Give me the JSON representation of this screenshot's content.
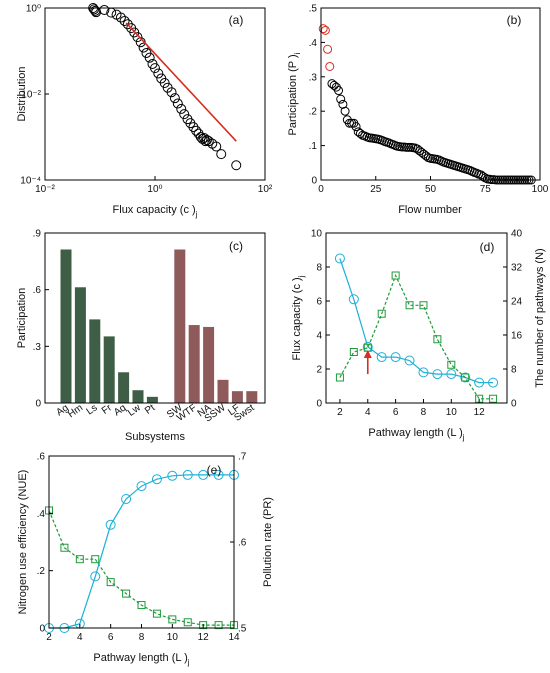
{
  "colors": {
    "black": "#000000",
    "red": "#d62e1f",
    "blue": "#1cb0d8",
    "green": "#1e9a3a",
    "dark_green": "#3f5e46",
    "brown": "#8e5a5a"
  },
  "chart_data": [
    {
      "id": "a",
      "panel_label": "(a)",
      "type": "scatter",
      "xscale": "log",
      "yscale": "log",
      "xlim": [
        0.01,
        100
      ],
      "ylim": [
        0.0001,
        1
      ],
      "xticks": [
        0.01,
        1,
        100
      ],
      "xtick_labels": [
        "10⁻²",
        "10⁰",
        "10²"
      ],
      "yticks": [
        0.0001,
        0.01,
        1
      ],
      "ytick_labels": [
        "10⁻⁴",
        "10⁻²",
        "10⁰"
      ],
      "xlabel": "Flux capacity (c )",
      "xlabel_sub": "j",
      "ylabel": "Distribution",
      "points_x": [
        0.075,
        0.078,
        0.082,
        0.085,
        0.12,
        0.16,
        0.2,
        0.24,
        0.28,
        0.32,
        0.37,
        0.42,
        0.48,
        0.55,
        0.62,
        0.7,
        0.8,
        0.9,
        1.0,
        1.15,
        1.3,
        1.5,
        1.7,
        2.0,
        2.3,
        2.6,
        3.0,
        3.4,
        3.9,
        4.4,
        5.0,
        5.6,
        6.2,
        6.8,
        7.3,
        7.8,
        8.3,
        8.8,
        9.5,
        11,
        13,
        16,
        30
      ],
      "points_y": [
        1.0,
        0.93,
        0.86,
        0.8,
        0.9,
        0.78,
        0.7,
        0.6,
        0.5,
        0.42,
        0.34,
        0.27,
        0.21,
        0.16,
        0.12,
        0.09,
        0.07,
        0.05,
        0.04,
        0.03,
        0.023,
        0.018,
        0.014,
        0.011,
        0.008,
        0.006,
        0.0045,
        0.0034,
        0.0026,
        0.0021,
        0.0017,
        0.0014,
        0.0012,
        0.001,
        0.0009,
        0.00095,
        0.0008,
        0.00085,
        0.0008,
        0.0007,
        0.0006,
        0.0004,
        0.00022
      ],
      "fit_line": {
        "x": [
          0.3,
          30
        ],
        "y": [
          0.45,
          0.0008
        ]
      }
    },
    {
      "id": "b",
      "panel_label": "(b)",
      "type": "scatter",
      "xlim": [
        0,
        100
      ],
      "ylim": [
        0,
        0.5
      ],
      "xticks": [
        0,
        25,
        50,
        75,
        100
      ],
      "yticks": [
        0,
        0.1,
        0.2,
        0.3,
        0.4,
        0.5
      ],
      "xlabel": "Flow number",
      "ylabel": "Participation (P )",
      "ylabel_sub": "i",
      "highlight_count": 4,
      "points_y": [
        0.44,
        0.435,
        0.38,
        0.33,
        0.28,
        0.275,
        0.27,
        0.26,
        0.235,
        0.22,
        0.2,
        0.175,
        0.165,
        0.165,
        0.165,
        0.155,
        0.14,
        0.135,
        0.13,
        0.128,
        0.125,
        0.123,
        0.122,
        0.121,
        0.12,
        0.119,
        0.117,
        0.115,
        0.112,
        0.11,
        0.108,
        0.105,
        0.103,
        0.1,
        0.098,
        0.097,
        0.096,
        0.096,
        0.095,
        0.095,
        0.095,
        0.094,
        0.093,
        0.09,
        0.085,
        0.08,
        0.075,
        0.07,
        0.065,
        0.063,
        0.062,
        0.061,
        0.06,
        0.058,
        0.055,
        0.052,
        0.05,
        0.048,
        0.046,
        0.044,
        0.042,
        0.04,
        0.038,
        0.036,
        0.034,
        0.032,
        0.03,
        0.028,
        0.025,
        0.022,
        0.02,
        0.017,
        0.015,
        0.01,
        0.006,
        0.003,
        0.002,
        0.001,
        0.001,
        0.0,
        0.0,
        0.0,
        0.0,
        0.0,
        0.0,
        0.0,
        0.0,
        0.0,
        0.0,
        0.0,
        0.0,
        0.0,
        0.0,
        0.0,
        0.0,
        0.0
      ]
    },
    {
      "id": "c",
      "panel_label": "(c)",
      "type": "bar",
      "ylim": [
        0,
        0.9
      ],
      "yticks": [
        0,
        0.3,
        0.6,
        0.9
      ],
      "xlabel": "Subsystems",
      "ylabel": "Participation",
      "groups": [
        {
          "categories": [
            "Ag",
            "Hm",
            "Ls",
            "Fr",
            "Aq",
            "Lw",
            "Pt"
          ],
          "values": [
            0.81,
            0.61,
            0.44,
            0.35,
            0.16,
            0.065,
            0.03
          ],
          "color": "#3f5e46"
        },
        {
          "categories": [
            "SW",
            "WTF",
            "NA",
            "SSW",
            "LF",
            "Swst"
          ],
          "values": [
            0.81,
            0.41,
            0.4,
            0.12,
            0.06,
            0.06
          ],
          "color": "#8e5a5a"
        }
      ]
    },
    {
      "id": "d",
      "panel_label": "(d)",
      "type": "line",
      "xlim": [
        1,
        14
      ],
      "xticks": [
        2,
        4,
        6,
        8,
        10,
        12
      ],
      "ylim_left": [
        0,
        10
      ],
      "yticks_left": [
        0,
        2,
        4,
        6,
        8,
        10
      ],
      "ylim_right": [
        0,
        40
      ],
      "yticks_right": [
        0,
        8,
        16,
        24,
        32,
        40
      ],
      "xlabel": "Pathway length (L )",
      "xlabel_sub": "j",
      "ylabel_left": "Flux capacity (c )",
      "ylabel_left_sub": "j",
      "ylabel_right": "The number of pathways (N)",
      "x": [
        2,
        3,
        4,
        5,
        6,
        7,
        8,
        9,
        10,
        11,
        12,
        13
      ],
      "series": [
        {
          "axis": "left",
          "marker": "circle",
          "style": "solid",
          "color": "#1cb0d8",
          "values": [
            8.5,
            6.1,
            3.3,
            2.7,
            2.7,
            2.5,
            1.8,
            1.7,
            1.7,
            1.5,
            1.2,
            1.2
          ]
        },
        {
          "axis": "right",
          "marker": "square",
          "style": "dashed",
          "color": "#1e9a3a",
          "values": [
            6,
            12,
            13,
            21,
            30,
            23,
            23,
            15,
            9,
            6,
            1,
            1
          ]
        }
      ],
      "annotation": {
        "type": "arrow",
        "x": 4,
        "y_from": 1.7,
        "y_to": 3.0,
        "color": "#d62e1f"
      }
    },
    {
      "id": "e",
      "panel_label": "(e)",
      "type": "line",
      "xlim": [
        2,
        14
      ],
      "xticks": [
        2,
        4,
        6,
        8,
        10,
        12,
        14
      ],
      "ylim_left": [
        0,
        0.6
      ],
      "yticks_left": [
        0,
        0.2,
        0.4,
        0.6
      ],
      "ylim_right": [
        0.5,
        0.7
      ],
      "yticks_right": [
        0.5,
        0.6,
        0.7
      ],
      "xlabel": "Pathway length (L )",
      "xlabel_sub": "j",
      "ylabel_left": "Nitrogen use efficiency (NUE)",
      "ylabel_right": "Pollution rate (PR)",
      "x": [
        2,
        3,
        4,
        5,
        6,
        7,
        8,
        9,
        10,
        11,
        12,
        13,
        14
      ],
      "series": [
        {
          "axis": "left",
          "marker": "square",
          "style": "dashed",
          "color": "#1e9a3a",
          "values": [
            0.41,
            0.28,
            0.24,
            0.24,
            0.16,
            0.12,
            0.08,
            0.05,
            0.03,
            0.02,
            0.01,
            0.01,
            0.01
          ]
        },
        {
          "axis": "right",
          "marker": "circle",
          "style": "solid",
          "color": "#1cb0d8",
          "values": [
            0.5,
            0.5,
            0.505,
            0.56,
            0.62,
            0.65,
            0.665,
            0.673,
            0.677,
            0.678,
            0.678,
            0.678,
            0.678
          ]
        }
      ]
    }
  ]
}
